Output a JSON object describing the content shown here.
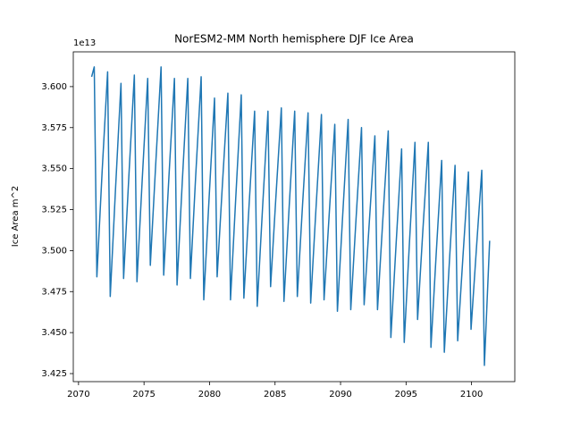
{
  "chart_data": {
    "type": "line",
    "title": "NorESM2-MM North hemisphere DJF Ice Area",
    "y_label": "Ice Area m^2",
    "y_offset_label": "1e13",
    "xlim": [
      2069.6,
      2103.3
    ],
    "ylim": [
      3.4201,
      3.6212
    ],
    "xticks": [
      2070,
      2075,
      2080,
      2085,
      2090,
      2095,
      2100
    ],
    "yticks": [
      3.425,
      {
        "value": 3.45,
        "label": "3.450"
      },
      3.475,
      {
        "value": 3.5,
        "label": "3.500"
      },
      3.525,
      {
        "value": 3.55,
        "label": "3.550"
      },
      3.575,
      {
        "value": 3.6,
        "label": "3.600"
      }
    ],
    "grid": false,
    "series": [
      {
        "color": "#1f77b4",
        "x": [
          2071.0,
          2071.2,
          2071.4,
          2071.8,
          2072.22,
          2072.42,
          2072.82,
          2073.24,
          2073.44,
          2073.84,
          2074.26,
          2074.46,
          2074.86,
          2075.28,
          2075.48,
          2075.88,
          2076.3,
          2076.5,
          2076.9,
          2077.32,
          2077.52,
          2077.92,
          2078.34,
          2078.54,
          2078.94,
          2079.36,
          2079.56,
          2079.96,
          2080.38,
          2080.58,
          2080.98,
          2081.4,
          2081.6,
          2082.0,
          2082.42,
          2082.62,
          2083.02,
          2083.44,
          2083.64,
          2084.04,
          2084.46,
          2084.66,
          2085.06,
          2085.48,
          2085.68,
          2086.08,
          2086.5,
          2086.7,
          2087.1,
          2087.52,
          2087.72,
          2088.12,
          2088.54,
          2088.74,
          2089.14,
          2089.56,
          2089.76,
          2090.16,
          2090.58,
          2090.78,
          2091.18,
          2091.6,
          2091.8,
          2092.2,
          2092.62,
          2092.82,
          2093.22,
          2093.64,
          2093.84,
          2094.24,
          2094.66,
          2094.86,
          2095.26,
          2095.68,
          2095.88,
          2096.28,
          2096.7,
          2096.9,
          2097.3,
          2097.72,
          2097.92,
          2098.32,
          2098.74,
          2098.94,
          2099.34,
          2099.76,
          2099.96,
          2100.36,
          2100.78,
          2100.98,
          2101.38
        ],
        "values": [
          3.606,
          3.612,
          3.484,
          3.548,
          3.609,
          3.472,
          3.537,
          3.602,
          3.483,
          3.545,
          3.607,
          3.481,
          3.543,
          3.605,
          3.491,
          3.551,
          3.612,
          3.485,
          3.545,
          3.605,
          3.479,
          3.542,
          3.605,
          3.483,
          3.545,
          3.606,
          3.47,
          3.531,
          3.593,
          3.484,
          3.54,
          3.596,
          3.47,
          3.532,
          3.595,
          3.471,
          3.528,
          3.585,
          3.466,
          3.525,
          3.585,
          3.478,
          3.532,
          3.587,
          3.469,
          3.527,
          3.585,
          3.472,
          3.528,
          3.584,
          3.468,
          3.525,
          3.583,
          3.47,
          3.523,
          3.577,
          3.463,
          3.521,
          3.58,
          3.464,
          3.519,
          3.575,
          3.467,
          3.518,
          3.57,
          3.464,
          3.518,
          3.573,
          3.447,
          3.504,
          3.562,
          3.444,
          3.505,
          3.566,
          3.458,
          3.512,
          3.566,
          3.441,
          3.498,
          3.555,
          3.438,
          3.495,
          3.552,
          3.445,
          3.496,
          3.548,
          3.452,
          3.5,
          3.549,
          3.43,
          3.506
        ]
      }
    ]
  }
}
